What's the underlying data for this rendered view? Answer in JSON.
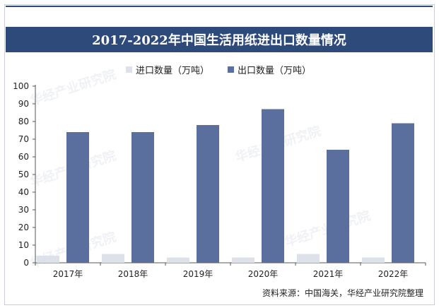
{
  "header": {
    "title": "2017-2022年中国生活用纸进出口数量情况"
  },
  "footer": {
    "source": "资料来源：中国海关，华经产业研究院整理"
  },
  "watermark": {
    "text": "华经产业研究院"
  },
  "colors": {
    "import": "#dde1ea",
    "export": "#5a6f9e",
    "title_bg": "#2d4a7a"
  },
  "chart_data": {
    "type": "bar",
    "title": "2017-2022年中国生活用纸进出口数量情况",
    "categories": [
      "2017年",
      "2018年",
      "2019年",
      "2020年",
      "2021年",
      "2022年"
    ],
    "series": [
      {
        "name": "进口数量（万吨）",
        "values": [
          4,
          5,
          3,
          3,
          5,
          3
        ]
      },
      {
        "name": "出口数量（万吨）",
        "values": [
          74,
          74,
          78,
          87,
          64,
          79
        ]
      }
    ],
    "yticks": [
      0,
      10,
      20,
      30,
      40,
      50,
      60,
      70,
      80,
      90,
      100
    ],
    "ylim": [
      0,
      100
    ],
    "xlabel": "",
    "ylabel": "",
    "legend": "top-center",
    "grid": false
  }
}
